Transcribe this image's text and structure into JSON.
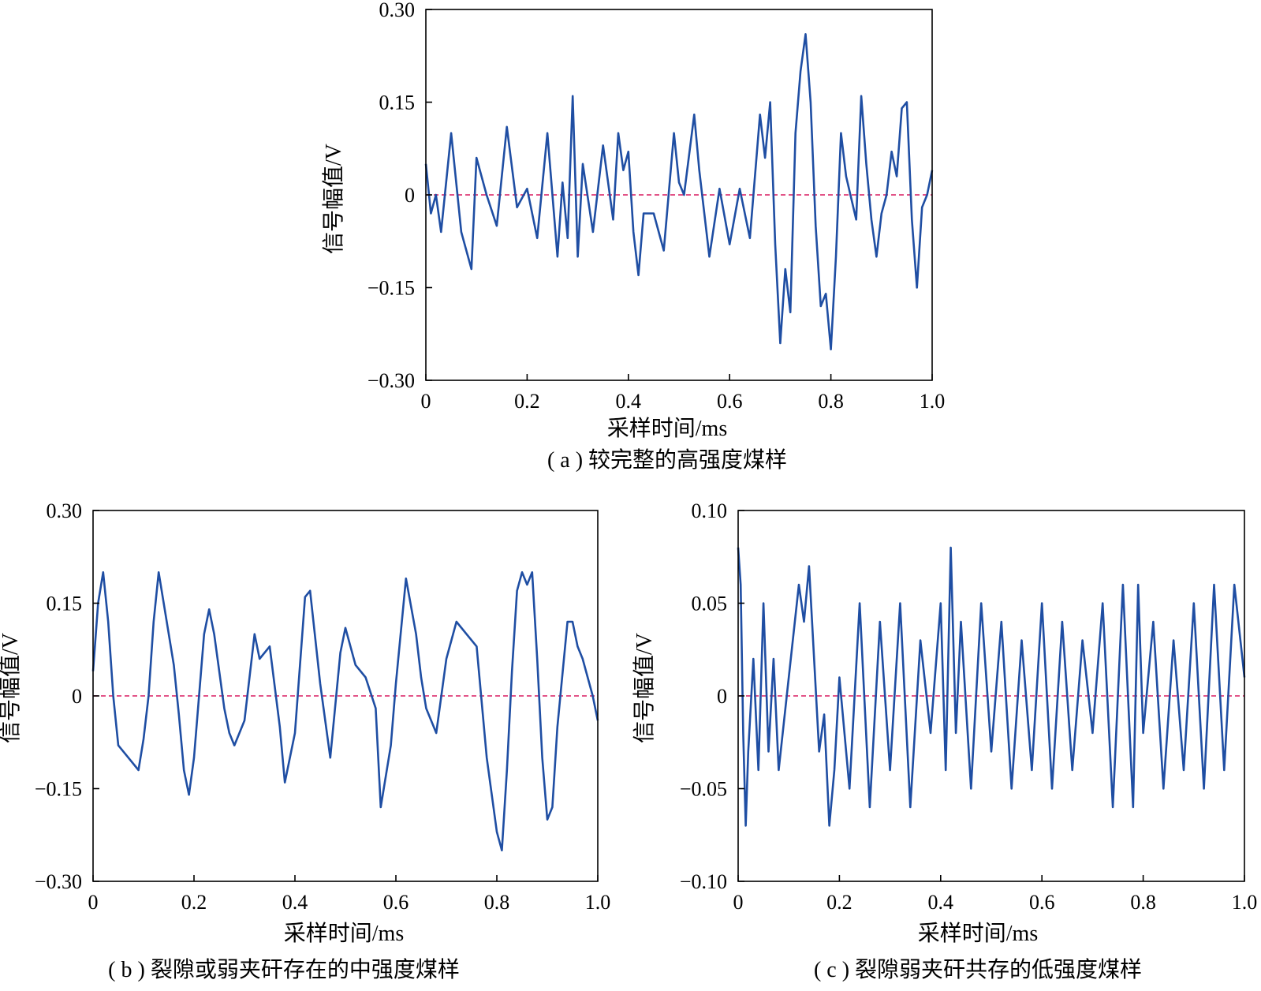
{
  "figure": {
    "panels": [
      {
        "id": "a",
        "caption": "( a ) 较完整的高强度煤样",
        "xlabel": "采样时间/ms",
        "ylabel": "信号幅值/V",
        "x_ticks": [
          "0",
          "0.2",
          "0.4",
          "0.6",
          "0.8",
          "1.0"
        ],
        "y_ticks": [
          "0.30",
          "0.15",
          "0",
          "−0.15",
          "−0.30"
        ]
      },
      {
        "id": "b",
        "caption": "( b ) 裂隙或弱夹矸存在的中强度煤样",
        "xlabel": "采样时间/ms",
        "ylabel": "信号幅值/V",
        "x_ticks": [
          "0",
          "0.2",
          "0.4",
          "0.6",
          "0.8",
          "1.0"
        ],
        "y_ticks": [
          "0.30",
          "0.15",
          "0",
          "−0.15",
          "−0.30"
        ]
      },
      {
        "id": "c",
        "caption": "( c ) 裂隙弱夹矸共存的低强度煤样",
        "xlabel": "采样时间/ms",
        "ylabel": "信号幅值/V",
        "x_ticks": [
          "0",
          "0.2",
          "0.4",
          "0.6",
          "0.8",
          "1.0"
        ],
        "y_ticks": [
          "0.10",
          "0.05",
          "0",
          "−0.05",
          "−0.10"
        ]
      }
    ]
  },
  "colors": {
    "signal": "#1f4ea3",
    "zero_line": "#d81b60",
    "axis": "#000000"
  },
  "chart_data": [
    {
      "type": "line",
      "xlabel": "采样时间/ms",
      "ylabel": "信号幅值/V",
      "xlim": [
        0,
        1.0
      ],
      "ylim": [
        -0.3,
        0.3
      ],
      "reference_line": 0,
      "x": [
        0,
        0.01,
        0.02,
        0.03,
        0.05,
        0.07,
        0.09,
        0.1,
        0.12,
        0.14,
        0.16,
        0.18,
        0.2,
        0.22,
        0.24,
        0.26,
        0.27,
        0.28,
        0.29,
        0.3,
        0.31,
        0.33,
        0.35,
        0.37,
        0.38,
        0.39,
        0.4,
        0.41,
        0.42,
        0.43,
        0.45,
        0.47,
        0.49,
        0.5,
        0.51,
        0.53,
        0.54,
        0.56,
        0.58,
        0.6,
        0.62,
        0.64,
        0.66,
        0.67,
        0.68,
        0.69,
        0.7,
        0.71,
        0.72,
        0.73,
        0.74,
        0.75,
        0.76,
        0.77,
        0.78,
        0.79,
        0.8,
        0.81,
        0.82,
        0.83,
        0.85,
        0.86,
        0.87,
        0.88,
        0.89,
        0.9,
        0.91,
        0.92,
        0.93,
        0.94,
        0.95,
        0.96,
        0.97,
        0.98,
        0.99,
        1.0
      ],
      "y": [
        0.05,
        -0.03,
        0.0,
        -0.06,
        0.1,
        -0.06,
        -0.12,
        0.06,
        0.0,
        -0.05,
        0.11,
        -0.02,
        0.01,
        -0.07,
        0.1,
        -0.1,
        0.02,
        -0.07,
        0.16,
        -0.1,
        0.05,
        -0.06,
        0.08,
        -0.04,
        0.1,
        0.04,
        0.07,
        -0.06,
        -0.13,
        -0.03,
        -0.03,
        -0.09,
        0.1,
        0.02,
        0.0,
        0.13,
        0.04,
        -0.1,
        0.01,
        -0.08,
        0.01,
        -0.07,
        0.13,
        0.06,
        0.15,
        -0.08,
        -0.24,
        -0.12,
        -0.19,
        0.1,
        0.2,
        0.26,
        0.15,
        -0.05,
        -0.18,
        -0.16,
        -0.25,
        -0.1,
        0.1,
        0.03,
        -0.04,
        0.16,
        0.05,
        -0.04,
        -0.1,
        -0.03,
        0.0,
        0.07,
        0.03,
        0.14,
        0.15,
        -0.04,
        -0.15,
        -0.02,
        0.0,
        0.04
      ]
    },
    {
      "type": "line",
      "xlabel": "采样时间/ms",
      "ylabel": "信号幅值/V",
      "xlim": [
        0,
        1.0
      ],
      "ylim": [
        -0.3,
        0.3
      ],
      "reference_line": 0,
      "x": [
        0,
        0.01,
        0.02,
        0.03,
        0.04,
        0.05,
        0.07,
        0.09,
        0.1,
        0.11,
        0.12,
        0.13,
        0.14,
        0.16,
        0.17,
        0.18,
        0.19,
        0.2,
        0.22,
        0.23,
        0.24,
        0.26,
        0.27,
        0.28,
        0.3,
        0.32,
        0.33,
        0.35,
        0.37,
        0.38,
        0.4,
        0.42,
        0.43,
        0.45,
        0.47,
        0.49,
        0.5,
        0.52,
        0.54,
        0.56,
        0.57,
        0.59,
        0.6,
        0.62,
        0.64,
        0.65,
        0.66,
        0.68,
        0.7,
        0.72,
        0.74,
        0.76,
        0.78,
        0.8,
        0.81,
        0.82,
        0.83,
        0.84,
        0.85,
        0.86,
        0.87,
        0.88,
        0.89,
        0.9,
        0.91,
        0.92,
        0.94,
        0.95,
        0.96,
        0.97,
        0.98,
        0.99,
        1.0
      ],
      "y": [
        0.04,
        0.15,
        0.2,
        0.12,
        0.0,
        -0.08,
        -0.1,
        -0.12,
        -0.07,
        0.0,
        0.12,
        0.2,
        0.15,
        0.05,
        -0.03,
        -0.12,
        -0.16,
        -0.1,
        0.1,
        0.14,
        0.1,
        -0.02,
        -0.06,
        -0.08,
        -0.04,
        0.1,
        0.06,
        0.08,
        -0.05,
        -0.14,
        -0.06,
        0.16,
        0.17,
        0.02,
        -0.1,
        0.07,
        0.11,
        0.05,
        0.03,
        -0.02,
        -0.18,
        -0.08,
        0.02,
        0.19,
        0.1,
        0.03,
        -0.02,
        -0.06,
        0.06,
        0.12,
        0.1,
        0.08,
        -0.1,
        -0.22,
        -0.25,
        -0.12,
        0.04,
        0.17,
        0.2,
        0.18,
        0.2,
        0.06,
        -0.1,
        -0.2,
        -0.18,
        -0.05,
        0.12,
        0.12,
        0.08,
        0.06,
        0.03,
        0.0,
        -0.04
      ]
    },
    {
      "type": "line",
      "xlabel": "采样时间/ms",
      "ylabel": "信号幅值/V",
      "xlim": [
        0,
        1.0
      ],
      "ylim": [
        -0.1,
        0.1
      ],
      "reference_line": 0,
      "x": [
        0,
        0.005,
        0.01,
        0.015,
        0.02,
        0.03,
        0.04,
        0.05,
        0.06,
        0.07,
        0.08,
        0.1,
        0.12,
        0.13,
        0.14,
        0.15,
        0.16,
        0.17,
        0.18,
        0.19,
        0.2,
        0.22,
        0.24,
        0.26,
        0.28,
        0.3,
        0.32,
        0.34,
        0.36,
        0.38,
        0.4,
        0.41,
        0.42,
        0.43,
        0.44,
        0.46,
        0.48,
        0.5,
        0.52,
        0.54,
        0.56,
        0.58,
        0.6,
        0.62,
        0.64,
        0.66,
        0.68,
        0.7,
        0.72,
        0.74,
        0.76,
        0.78,
        0.79,
        0.8,
        0.82,
        0.84,
        0.86,
        0.88,
        0.9,
        0.92,
        0.94,
        0.96,
        0.98,
        1.0
      ],
      "y": [
        0.08,
        0.06,
        -0.02,
        -0.07,
        -0.03,
        0.02,
        -0.04,
        0.05,
        -0.03,
        0.02,
        -0.04,
        0.01,
        0.06,
        0.04,
        0.07,
        0.02,
        -0.03,
        -0.01,
        -0.07,
        -0.04,
        0.01,
        -0.05,
        0.05,
        -0.06,
        0.04,
        -0.04,
        0.05,
        -0.06,
        0.03,
        -0.02,
        0.05,
        -0.04,
        0.08,
        -0.02,
        0.04,
        -0.05,
        0.05,
        -0.03,
        0.04,
        -0.05,
        0.03,
        -0.04,
        0.05,
        -0.05,
        0.04,
        -0.04,
        0.03,
        -0.02,
        0.05,
        -0.06,
        0.06,
        -0.06,
        0.06,
        -0.02,
        0.04,
        -0.05,
        0.03,
        -0.04,
        0.05,
        -0.05,
        0.06,
        -0.04,
        0.06,
        0.01
      ]
    }
  ]
}
